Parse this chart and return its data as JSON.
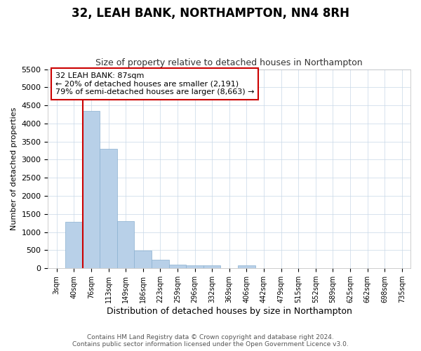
{
  "title": "32, LEAH BANK, NORTHAMPTON, NN4 8RH",
  "subtitle": "Size of property relative to detached houses in Northampton",
  "xlabel": "Distribution of detached houses by size in Northampton",
  "ylabel": "Number of detached properties",
  "bar_categories": [
    "3sqm",
    "40sqm",
    "76sqm",
    "113sqm",
    "149sqm",
    "186sqm",
    "223sqm",
    "259sqm",
    "296sqm",
    "332sqm",
    "369sqm",
    "406sqm",
    "442sqm",
    "479sqm",
    "515sqm",
    "552sqm",
    "589sqm",
    "625sqm",
    "662sqm",
    "698sqm",
    "735sqm"
  ],
  "bar_heights": [
    0,
    1280,
    4350,
    3300,
    1300,
    480,
    240,
    100,
    75,
    75,
    0,
    75,
    0,
    0,
    0,
    0,
    0,
    0,
    0,
    0,
    0
  ],
  "bar_color": "#b8d0e8",
  "bar_edgecolor": "#8ab0d0",
  "vline_index": 2,
  "annotation_line1": "32 LEAH BANK: 87sqm",
  "annotation_line2": "← 20% of detached houses are smaller (2,191)",
  "annotation_line3": "79% of semi-detached houses are larger (8,663) →",
  "annotation_box_edgecolor": "#cc0000",
  "annotation_box_facecolor": "#ffffff",
  "vline_color": "#cc0000",
  "ylim_max": 5500,
  "yticks": [
    0,
    500,
    1000,
    1500,
    2000,
    2500,
    3000,
    3500,
    4000,
    4500,
    5000,
    5500
  ],
  "footer_line1": "Contains HM Land Registry data © Crown copyright and database right 2024.",
  "footer_line2": "Contains public sector information licensed under the Open Government Licence v3.0.",
  "bg_color": "#ffffff",
  "grid_color": "#c8d8e8",
  "title_fontsize": 12,
  "subtitle_fontsize": 9
}
